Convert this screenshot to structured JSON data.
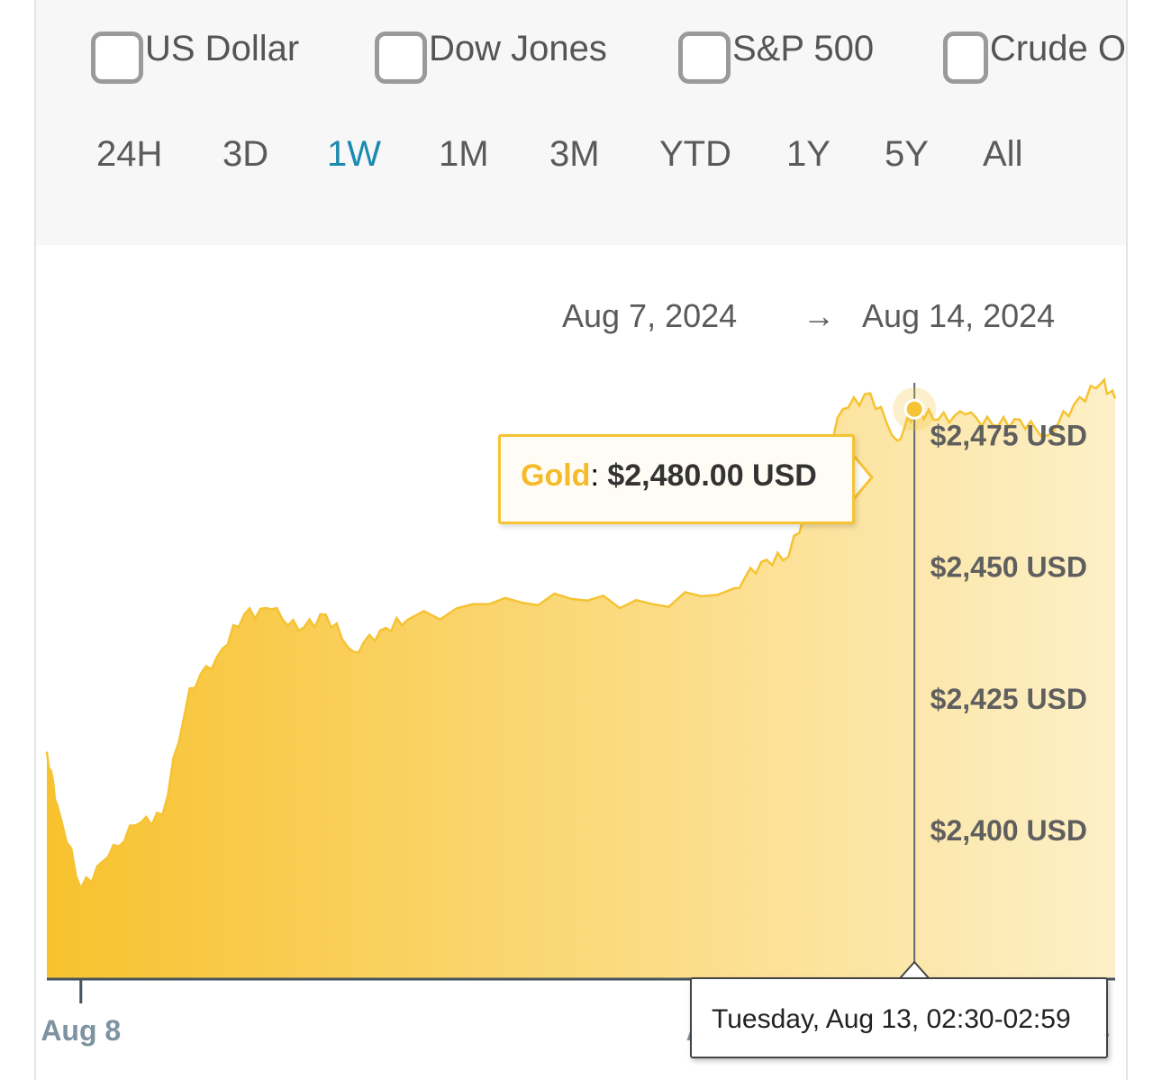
{
  "compare": [
    {
      "label": "US Dollar",
      "checked": false
    },
    {
      "label": "Dow Jones",
      "checked": false
    },
    {
      "label": "S&P 500",
      "checked": false
    },
    {
      "label": "Crude O",
      "checked": false
    }
  ],
  "ranges": [
    "24H",
    "3D",
    "1W",
    "1M",
    "3M",
    "YTD",
    "1Y",
    "5Y",
    "All"
  ],
  "active_range": "1W",
  "date_range": {
    "start": "Aug 7, 2024",
    "arrow": "→",
    "end": "Aug 14, 2024"
  },
  "tooltip": {
    "series": "Gold",
    "separator": ": ",
    "value": "$2,480.00 USD"
  },
  "time_tooltip": "Tuesday, Aug 13, 02:30-02:59",
  "colors": {
    "gold": "#f5c333",
    "gold_light": "#fdf2c8",
    "accent": "#1a8ab0"
  },
  "chart_data": {
    "type": "area",
    "series": [
      {
        "name": "Gold",
        "x": [
          "Aug 7 19:00",
          "Aug 7 20:30",
          "Aug 8 00:00",
          "Aug 8 04:00",
          "Aug 8 08:00",
          "Aug 8 12:00",
          "Aug 8 16:00",
          "Aug 8 20:00",
          "Aug 9 00:00",
          "Aug 9 04:00",
          "Aug 9 08:00",
          "Aug 9 12:00",
          "Aug 9 16:00",
          "Aug 9 20:00",
          "Aug 10 00:00",
          "Aug 10 12:00",
          "Aug 11 00:00",
          "Aug 11 12:00",
          "Aug 12 00:00",
          "Aug 12 04:00",
          "Aug 12 08:00",
          "Aug 12 12:00",
          "Aug 12 16:00",
          "Aug 12 20:00",
          "Aug 13 00:00",
          "Aug 13 02:30",
          "Aug 13 06:00",
          "Aug 13 10:00",
          "Aug 13 14:00",
          "Aug 13 18:00",
          "Aug 13 22:00",
          "Aug 14 02:00",
          "Aug 14 06:00",
          "Aug 14 08:00"
        ],
        "values": [
          2415,
          2405,
          2389,
          2395,
          2401,
          2403,
          2427,
          2433,
          2441,
          2442,
          2438,
          2441,
          2434,
          2438,
          2440,
          2443,
          2444,
          2443,
          2446,
          2451,
          2452,
          2466,
          2480,
          2483,
          2474,
          2480,
          2478,
          2479,
          2477,
          2478,
          2475,
          2481,
          2485,
          2482
        ]
      }
    ],
    "xtick_labels": [
      "Aug 8",
      "Aug 12",
      "Aug 14"
    ],
    "ytick_labels": [
      "$2,400 USD",
      "$2,425 USD",
      "$2,450 USD",
      "$2,475 USD"
    ],
    "ytick_values": [
      2400,
      2425,
      2450,
      2475
    ],
    "ylim": [
      2372,
      2485
    ],
    "grid": false,
    "legend": "none",
    "crosshair_x": "Aug 13 02:30",
    "crosshair_value": 2480
  }
}
